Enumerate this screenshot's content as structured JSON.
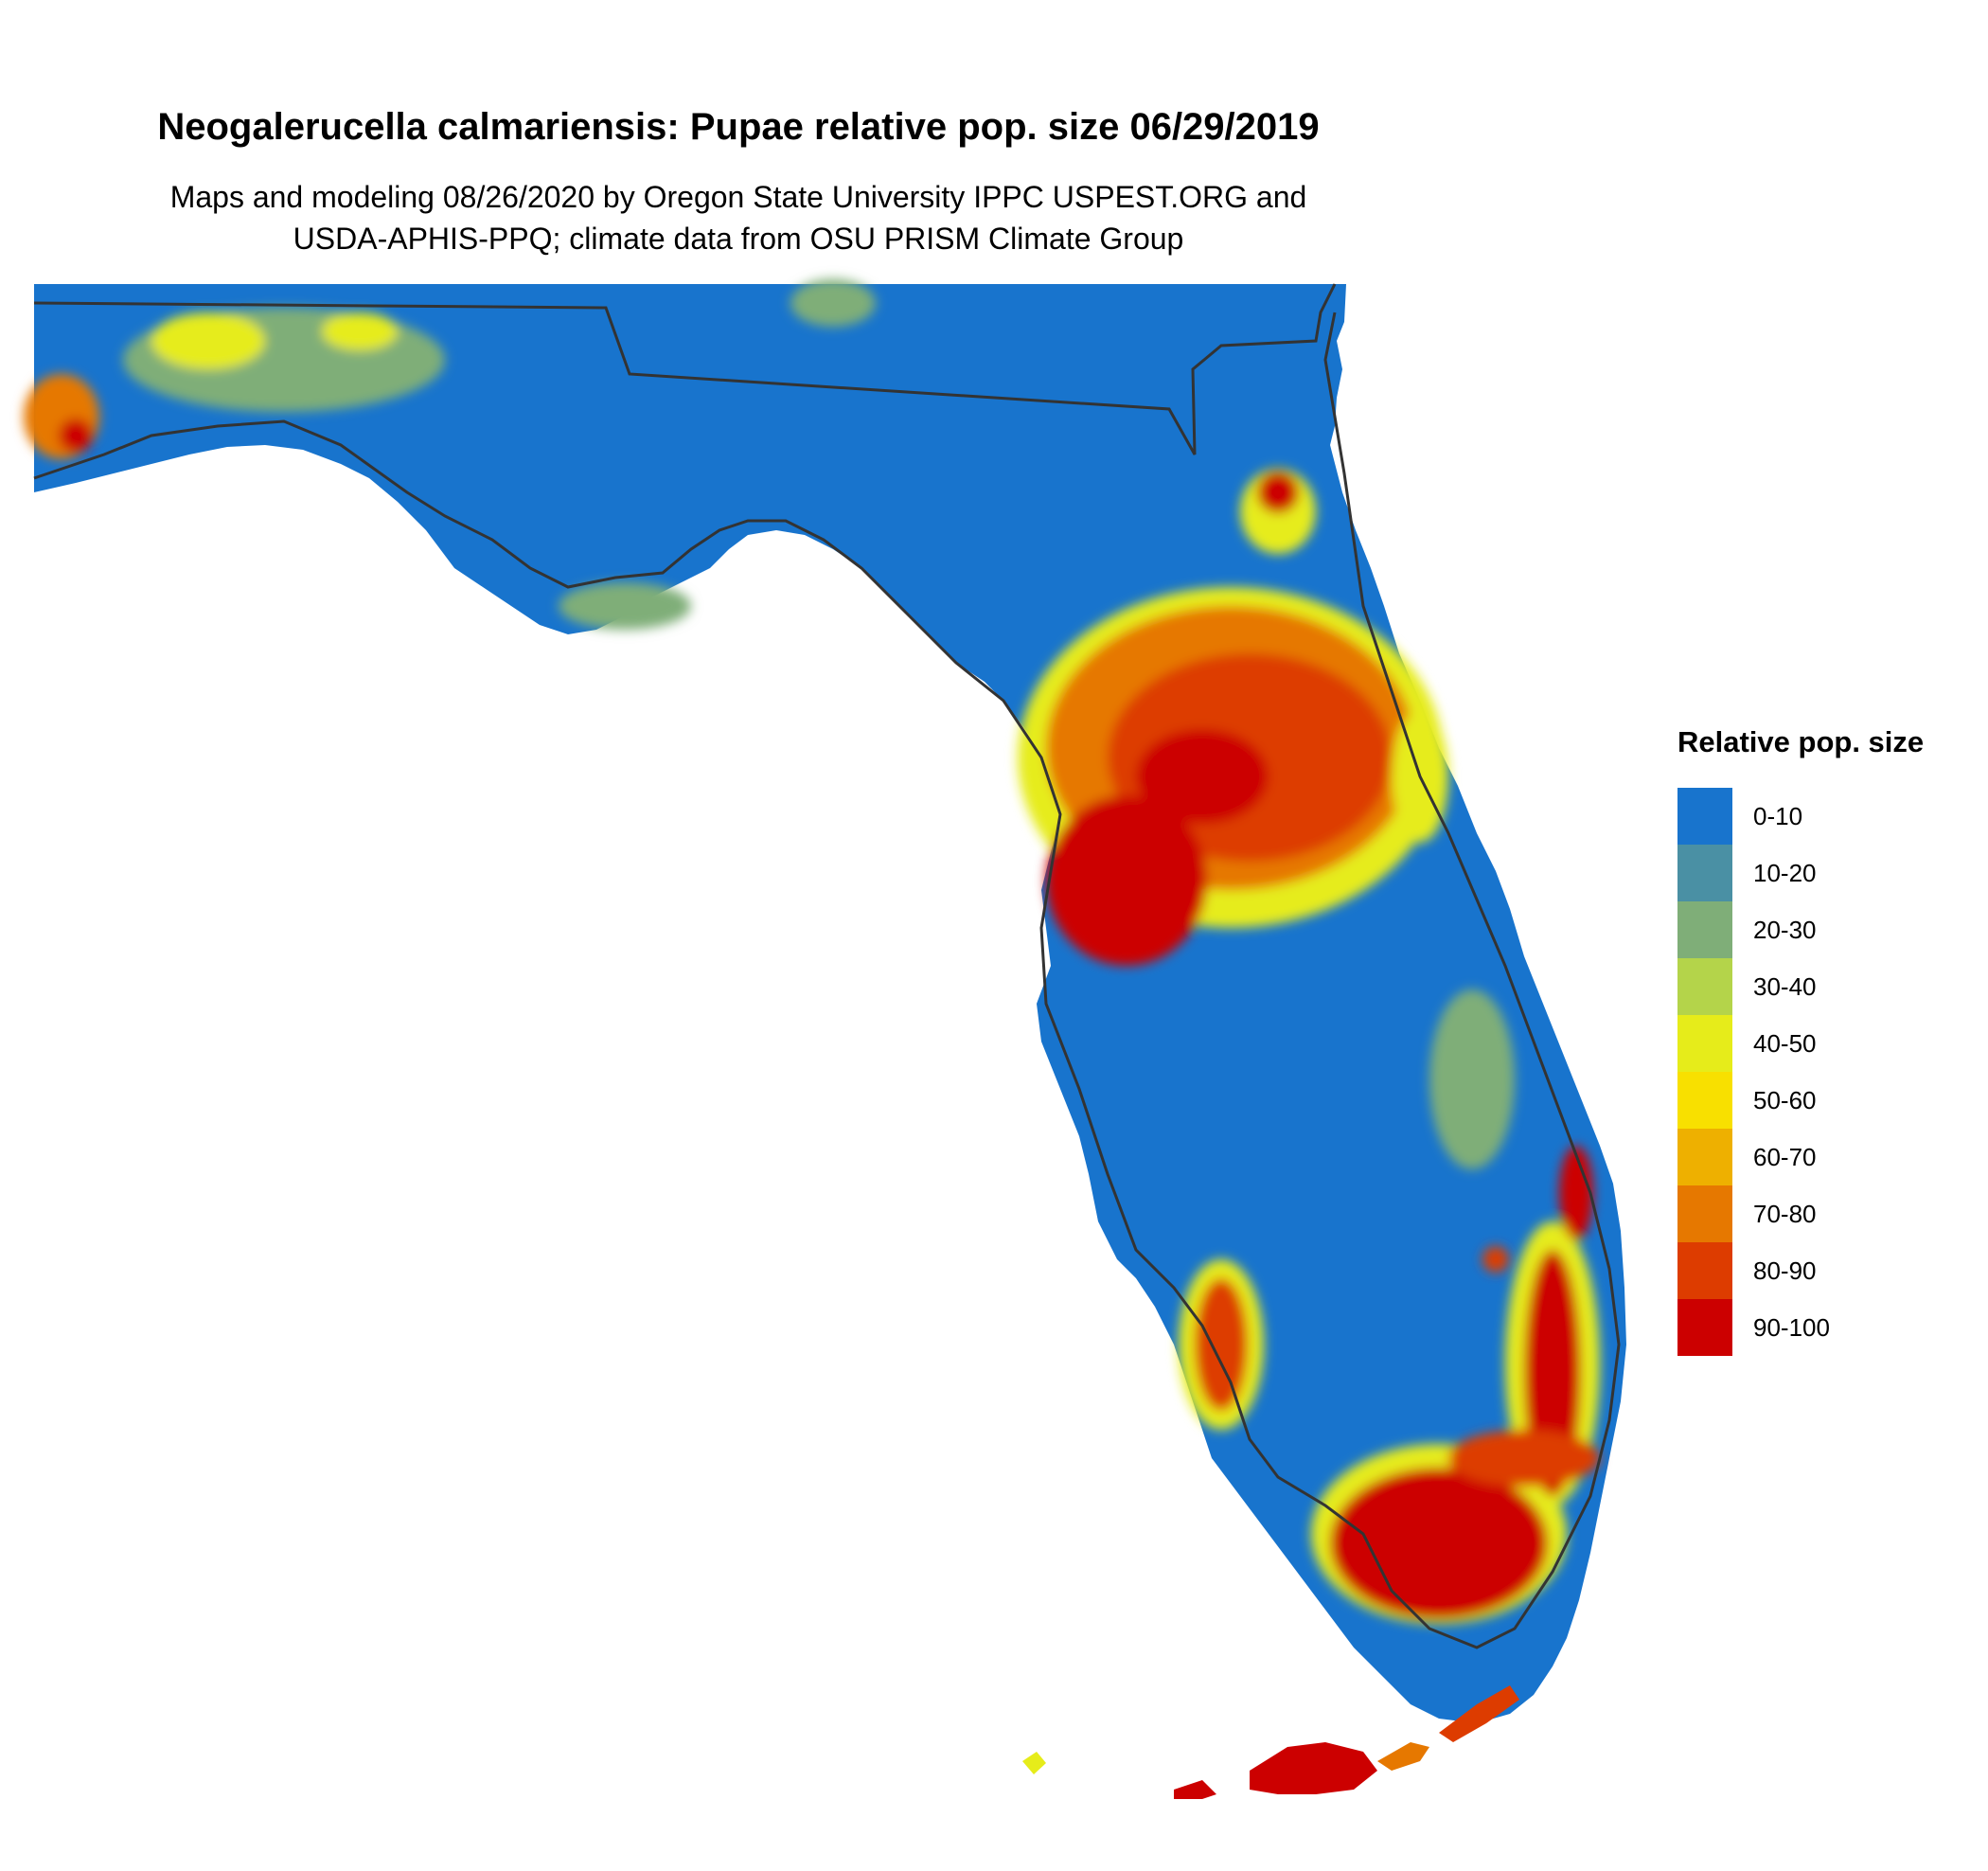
{
  "title": "Neogalerucella calmariensis: Pupae relative pop. size 06/29/2019",
  "subtitle_line1": "Maps and modeling 08/26/2020 by Oregon State University IPPC USPEST.ORG and",
  "subtitle_line2": "USDA-APHIS-PPQ; climate data from OSU PRISM Climate Group",
  "legend": {
    "title": "Relative pop. size",
    "items": [
      {
        "label": "0-10",
        "color": "#1874cd"
      },
      {
        "label": "10-20",
        "color": "#4a90a4"
      },
      {
        "label": "20-30",
        "color": "#7fae78"
      },
      {
        "label": "30-40",
        "color": "#b4d44a"
      },
      {
        "label": "40-50",
        "color": "#e6ec1a"
      },
      {
        "label": "50-60",
        "color": "#f8e000"
      },
      {
        "label": "60-70",
        "color": "#eeb000"
      },
      {
        "label": "70-80",
        "color": "#e67800"
      },
      {
        "label": "80-90",
        "color": "#dd3c00"
      },
      {
        "label": "90-100",
        "color": "#cc0000"
      }
    ]
  },
  "map": {
    "region": "Florida",
    "background_class": "0-10",
    "hotspot_classes": [
      "40-50",
      "70-80",
      "90-100"
    ]
  }
}
